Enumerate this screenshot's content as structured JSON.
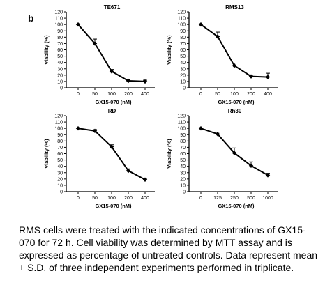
{
  "panel_letter": "b",
  "caption": "RMS cells were treated with the indicated concentrations of GX15-070 for 72 h. Cell viability was determined by MTT assay and is expressed as percentage of untreated controls. Data represent mean + S.D. of three independent experiments performed in triplicate.",
  "chart_data": [
    {
      "type": "line",
      "title": "TE671",
      "xlabel": "GX15-070 (nM)",
      "ylabel": "Viability (%)",
      "categories": [
        "0",
        "50",
        "100",
        "200",
        "400"
      ],
      "values": [
        100,
        70,
        26,
        11,
        10
      ],
      "errors": [
        0,
        7,
        3,
        2,
        2
      ],
      "yticks": [
        "0",
        "10",
        "20",
        "30",
        "40",
        "50",
        "60",
        "70",
        "80",
        "90",
        "100",
        "110",
        "120"
      ],
      "ylim": [
        0,
        120
      ],
      "grid": false
    },
    {
      "type": "line",
      "title": "RMS13",
      "xlabel": "GX15-070 (nM)",
      "ylabel": "Viability (%)",
      "categories": [
        "0",
        "50",
        "100",
        "200",
        "400"
      ],
      "values": [
        100,
        81,
        35,
        18,
        17
      ],
      "errors": [
        0,
        7,
        4,
        2,
        6
      ],
      "yticks": [
        "0",
        "10",
        "20",
        "30",
        "40",
        "50",
        "60",
        "70",
        "80",
        "90",
        "100",
        "110",
        "120"
      ],
      "ylim": [
        0,
        120
      ],
      "grid": false
    },
    {
      "type": "line",
      "title": "RD",
      "xlabel": "GX15-070 (nM)",
      "ylabel": "Viability (%)",
      "categories": [
        "0",
        "50",
        "100",
        "200",
        "400"
      ],
      "values": [
        100,
        96,
        71,
        33,
        19
      ],
      "errors": [
        0,
        2,
        3,
        3,
        2
      ],
      "yticks": [
        "0",
        "10",
        "20",
        "30",
        "40",
        "50",
        "60",
        "70",
        "80",
        "90",
        "100",
        "110",
        "120"
      ],
      "ylim": [
        0,
        120
      ],
      "grid": false
    },
    {
      "type": "line",
      "title": "Rh30",
      "xlabel": "GX15-070 (nM)",
      "ylabel": "Viability (%)",
      "categories": [
        "0",
        "125",
        "250",
        "500",
        "1000"
      ],
      "values": [
        100,
        91,
        61,
        41,
        26
      ],
      "errors": [
        0,
        3,
        8,
        6,
        3
      ],
      "yticks": [
        "0",
        "10",
        "20",
        "30",
        "40",
        "50",
        "60",
        "70",
        "80",
        "90",
        "100",
        "110",
        "120"
      ],
      "ylim": [
        0,
        120
      ],
      "grid": false
    }
  ]
}
